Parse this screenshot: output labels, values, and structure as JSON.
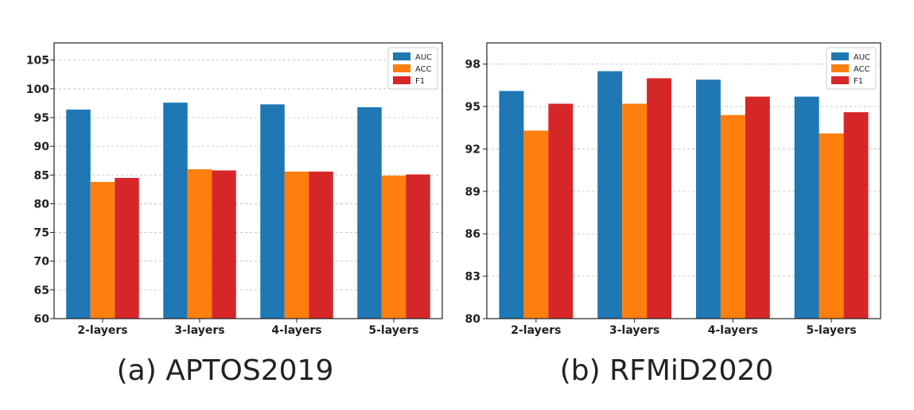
{
  "colors": {
    "AUC": "#1f77b4",
    "ACC": "#ff7f0e",
    "F1": "#d62728"
  },
  "chart_data": [
    {
      "type": "bar",
      "caption": "(a) APTOS2019",
      "categories": [
        "2-layers",
        "3-layers",
        "4-layers",
        "5-layers"
      ],
      "series": [
        {
          "name": "AUC",
          "values": [
            96.4,
            97.6,
            97.3,
            96.8
          ]
        },
        {
          "name": "ACC",
          "values": [
            83.8,
            86.0,
            85.6,
            84.9
          ]
        },
        {
          "name": "F1",
          "values": [
            84.5,
            85.8,
            85.6,
            85.1
          ]
        }
      ],
      "ylim": [
        60,
        108
      ],
      "yticks": [
        60,
        65,
        70,
        75,
        80,
        85,
        90,
        95,
        100,
        105
      ],
      "grid": true,
      "legend_position": "top-right"
    },
    {
      "type": "bar",
      "caption": "(b) RFMiD2020",
      "categories": [
        "2-layers",
        "3-layers",
        "4-layers",
        "5-layers"
      ],
      "series": [
        {
          "name": "AUC",
          "values": [
            96.1,
            97.5,
            96.9,
            95.7
          ]
        },
        {
          "name": "ACC",
          "values": [
            93.3,
            95.2,
            94.4,
            93.1
          ]
        },
        {
          "name": "F1",
          "values": [
            95.2,
            97.0,
            95.7,
            94.6
          ]
        }
      ],
      "ylim": [
        80,
        99.5
      ],
      "yticks": [
        80,
        83,
        86,
        89,
        92,
        95,
        98
      ],
      "grid": true,
      "legend_position": "top-right"
    }
  ]
}
